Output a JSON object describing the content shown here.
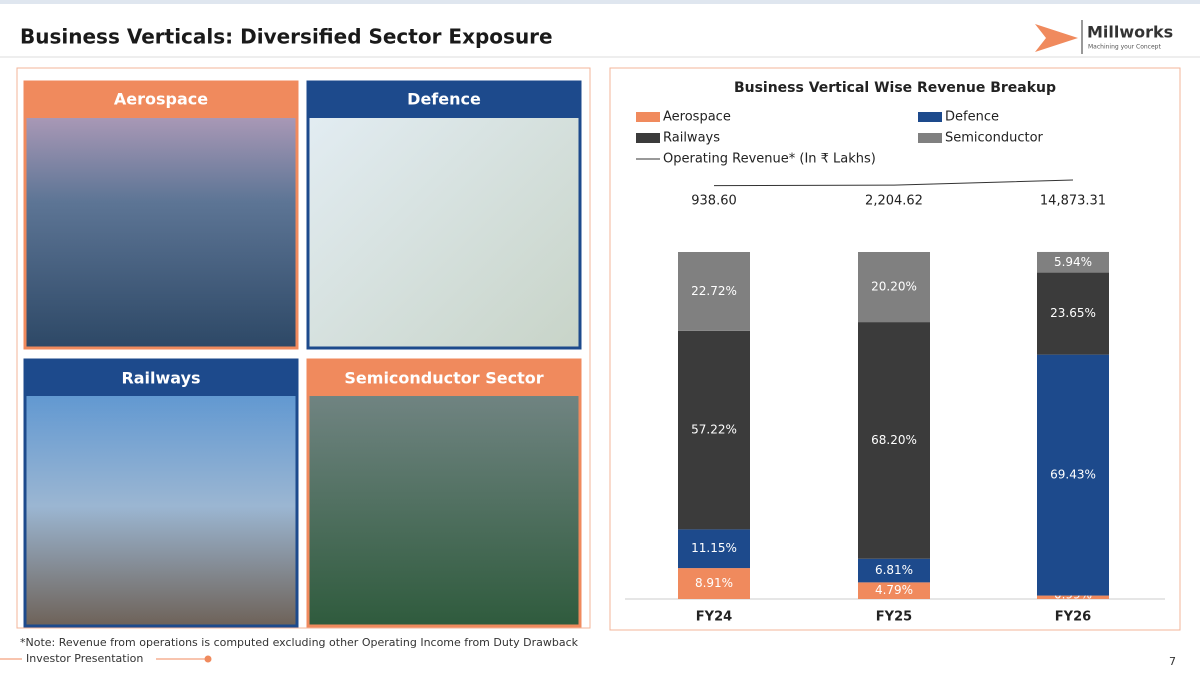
{
  "header": {
    "title": "Business Verticals: Diversified Sector Exposure",
    "logo_name": "Millworks",
    "logo_tagline": "Machining your Concept"
  },
  "tiles": [
    {
      "label": "Aerospace"
    },
    {
      "label": "Defence"
    },
    {
      "label": "Railways"
    },
    {
      "label": "Semiconductor Sector"
    }
  ],
  "chart_data": {
    "type": "bar",
    "stacked": true,
    "title": "Business Vertical Wise Revenue Breakup",
    "categories": [
      "FY24",
      "FY25",
      "FY26"
    ],
    "ylim": [
      0,
      100
    ],
    "series": [
      {
        "name": "Aerospace",
        "color": "#f08a5d",
        "values": [
          8.91,
          4.79,
          0.99
        ],
        "value_labels": [
          "8.91%",
          "4.79%",
          "0.99%"
        ]
      },
      {
        "name": "Defence",
        "color": "#1d4a8c",
        "values": [
          11.15,
          6.81,
          69.43
        ],
        "value_labels": [
          "11.15%",
          "6.81%",
          "69.43%"
        ]
      },
      {
        "name": "Railways",
        "color": "#3b3b3b",
        "values": [
          57.22,
          68.2,
          23.65
        ],
        "value_labels": [
          "57.22%",
          "68.20%",
          "23.65%"
        ]
      },
      {
        "name": "Semiconductor",
        "color": "#808080",
        "values": [
          22.72,
          20.2,
          5.94
        ],
        "value_labels": [
          "22.72%",
          "20.20%",
          "5.94%"
        ]
      }
    ],
    "line": {
      "name": "Operating Revenue* (In ₹ Lakhs)",
      "color": "#333333",
      "values": [
        938.6,
        2204.62,
        14873.31
      ],
      "value_labels": [
        "938.60",
        "2,204.62",
        "14,873.31"
      ]
    }
  },
  "note": "*Note: Revenue from operations is computed excluding other Operating Income from Duty Drawback",
  "footer": {
    "label": "Investor Presentation",
    "page": "7"
  }
}
